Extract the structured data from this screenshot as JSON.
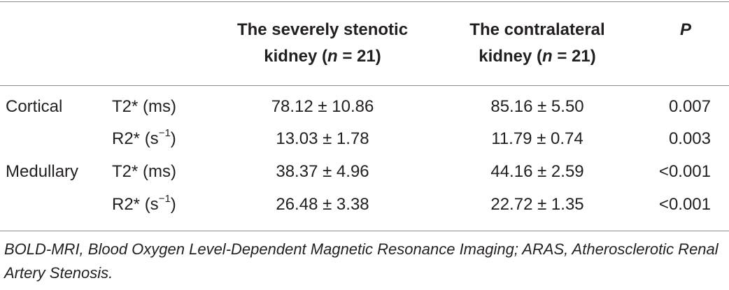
{
  "table": {
    "headers": {
      "col_severe_line1": "The severely stenotic",
      "col_severe_line2_prefix": "kidney (",
      "col_severe_n": "n",
      "col_severe_line2_suffix": " = 21)",
      "col_contra_line1": "The contralateral",
      "col_contra_line2_prefix": "kidney (",
      "col_contra_n": "n",
      "col_contra_line2_suffix": " = 21)",
      "col_p": "P"
    },
    "rows": [
      {
        "region": "Cortical",
        "param_base": "T2* (ms)",
        "param_sup": "",
        "param_close": "",
        "severe": "78.12 ± 10.86",
        "contralateral": "85.16 ± 5.50",
        "p": "0.007"
      },
      {
        "region": "",
        "param_base": "R2* (s",
        "param_sup": "−1",
        "param_close": ")",
        "severe": "13.03 ± 1.78",
        "contralateral": "11.79 ± 0.74",
        "p": "0.003"
      },
      {
        "region": "Medullary",
        "param_base": "T2* (ms)",
        "param_sup": "",
        "param_close": "",
        "severe": "38.37 ± 4.96",
        "contralateral": "44.16 ± 2.59",
        "p": "<0.001"
      },
      {
        "region": "",
        "param_base": "R2* (s",
        "param_sup": "−1",
        "param_close": ")",
        "severe": "26.48 ± 3.38",
        "contralateral": "22.72 ± 1.35",
        "p": "<0.001"
      }
    ]
  },
  "footnote": "BOLD-MRI, Blood Oxygen Level-Dependent Magnetic Resonance Imaging; ARAS, Atherosclerotic Renal Artery Stenosis."
}
